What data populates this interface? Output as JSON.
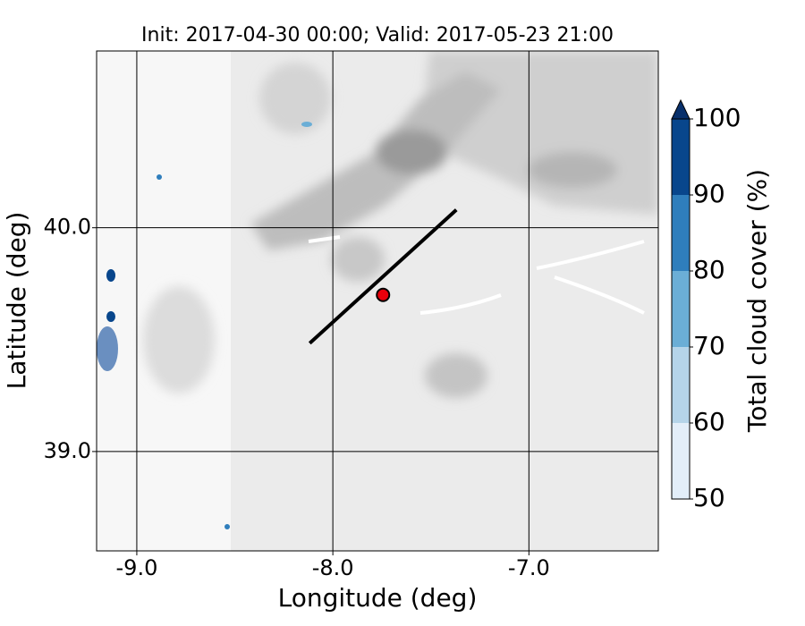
{
  "chart_data": {
    "type": "map",
    "title": "Init: 2017-04-30 00:00; Valid: 2017-05-23 21:00",
    "xlabel": "Longitude (deg)",
    "ylabel": "Latitude (deg)",
    "xlim": [
      -9.205,
      -6.34
    ],
    "ylim": [
      38.556,
      40.79
    ],
    "xticks": [
      {
        "value": -9,
        "label": "-9.0"
      },
      {
        "value": -8,
        "label": "-8.0"
      },
      {
        "value": -7,
        "label": "-7.0"
      }
    ],
    "yticks": [
      {
        "value": 39,
        "label": "39.0"
      },
      {
        "value": 40,
        "label": "40.0"
      }
    ],
    "grid": true,
    "transect": {
      "lon": [
        -8.118,
        -7.37
      ],
      "lat": [
        39.484,
        40.08
      ],
      "color": "#000000"
    },
    "point": {
      "lon": -7.744,
      "lat": 39.7,
      "color": "#e8000b"
    },
    "colorbar": {
      "label": "Total cloud cover (%)",
      "clim": [
        50,
        100
      ],
      "ticks": [
        50,
        60,
        70,
        80,
        90,
        100
      ],
      "colors": [
        "#e3eef9",
        "#b5d4e9",
        "#6baed6",
        "#2f7ebc",
        "#08468c"
      ],
      "extend_color": "#08306b"
    }
  }
}
